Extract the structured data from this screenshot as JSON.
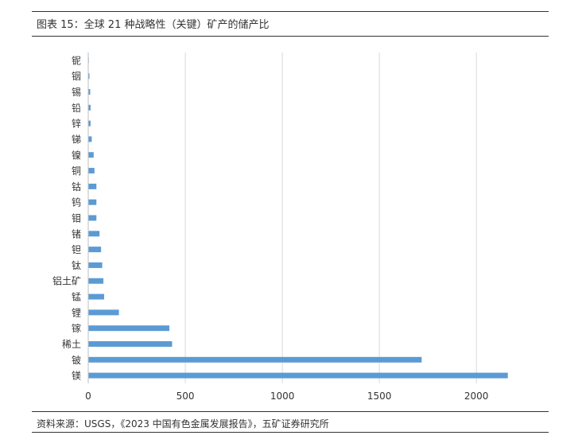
{
  "header": {
    "title": "图表 15：全球 21 种战略性（关键）矿产的储产比"
  },
  "footer": {
    "source": "资料来源：USGS，《2023 中国有色金属发展报告》，五矿证券研究所"
  },
  "chart_data": {
    "type": "bar",
    "orientation": "horizontal",
    "title": "",
    "xlabel": "",
    "ylabel": "",
    "xlim": [
      0,
      2200
    ],
    "xticks": [
      0,
      500,
      1000,
      1500,
      2000
    ],
    "grid": true,
    "legend": "none",
    "bar_color": "#5b9bd5",
    "categories": [
      "铌",
      "铟",
      "锡",
      "铅",
      "锌",
      "锑",
      "镍",
      "铜",
      "钴",
      "钨",
      "钼",
      "锗",
      "钽",
      "钛",
      "铝土矿",
      "锰",
      "锂",
      "镓",
      "稀土",
      "铍",
      "镁"
    ],
    "values": [
      3,
      6,
      10,
      12,
      12,
      18,
      28,
      32,
      42,
      42,
      42,
      58,
      66,
      72,
      78,
      82,
      158,
      418,
      432,
      1718,
      2162
    ]
  }
}
